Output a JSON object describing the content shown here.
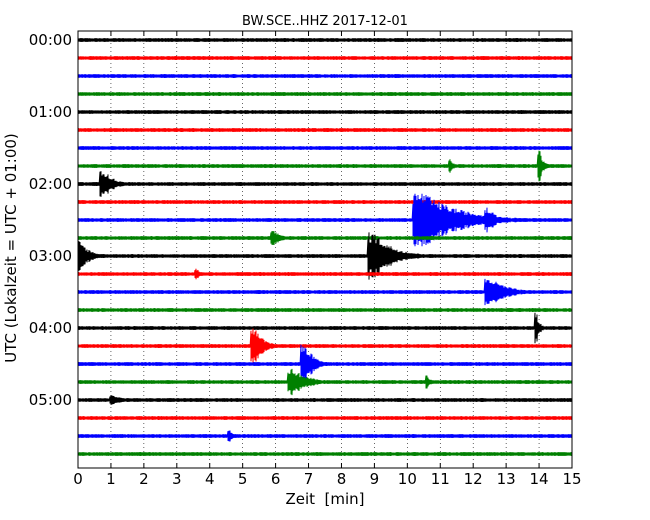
{
  "chart_data": {
    "type": "line",
    "title": "BW.SCE..HHZ 2017-12-01",
    "xlabel": "Zeit  [min]",
    "ylabel": "UTC (Lokalzeit = UTC + 01:00)",
    "xlim": [
      0,
      15
    ],
    "x_ticks": [
      "0",
      "1",
      "2",
      "3",
      "4",
      "5",
      "6",
      "7",
      "8",
      "9",
      "10",
      "11",
      "12",
      "13",
      "14",
      "15"
    ],
    "y_ticks": [
      "00:00",
      "01:00",
      "02:00",
      "03:00",
      "04:00",
      "05:00"
    ],
    "grid": true,
    "trace_colors": [
      "#000000",
      "#ff0000",
      "#0000ff",
      "#008000"
    ],
    "trace_start_times": [
      "00:00",
      "00:15",
      "00:30",
      "00:45",
      "01:00",
      "01:15",
      "01:30",
      "01:45",
      "02:00",
      "02:15",
      "02:30",
      "02:45",
      "03:00",
      "03:15",
      "03:30",
      "03:45",
      "04:00",
      "04:15",
      "04:30",
      "04:45",
      "05:00",
      "05:15",
      "05:30",
      "05:45"
    ],
    "events": [
      {
        "trace": 7,
        "minute": 11.3,
        "amp": 0.3,
        "dur": 0.25
      },
      {
        "trace": 7,
        "minute": 14.0,
        "amp": 0.55,
        "dur": 0.35
      },
      {
        "trace": 8,
        "minute": 0.7,
        "amp": 0.55,
        "dur": 0.9
      },
      {
        "trace": 10,
        "minute": 10.2,
        "amp": 1.0,
        "dur": 3.4
      },
      {
        "trace": 10,
        "minute": 12.4,
        "amp": 0.45,
        "dur": 0.8
      },
      {
        "trace": 11,
        "minute": 5.9,
        "amp": 0.25,
        "dur": 0.8
      },
      {
        "trace": 12,
        "minute": 0.0,
        "amp": 0.55,
        "dur": 0.9
      },
      {
        "trace": 12,
        "minute": 8.85,
        "amp": 0.85,
        "dur": 1.8
      },
      {
        "trace": 13,
        "minute": 3.6,
        "amp": 0.2,
        "dur": 0.3
      },
      {
        "trace": 14,
        "minute": 12.4,
        "amp": 0.5,
        "dur": 1.6
      },
      {
        "trace": 16,
        "minute": 13.9,
        "amp": 0.55,
        "dur": 0.3
      },
      {
        "trace": 17,
        "minute": 5.3,
        "amp": 0.65,
        "dur": 0.9
      },
      {
        "trace": 18,
        "minute": 6.8,
        "amp": 0.75,
        "dur": 0.9
      },
      {
        "trace": 19,
        "minute": 6.4,
        "amp": 0.5,
        "dur": 1.4
      },
      {
        "trace": 19,
        "minute": 10.6,
        "amp": 0.25,
        "dur": 0.3
      },
      {
        "trace": 20,
        "minute": 1.0,
        "amp": 0.2,
        "dur": 0.8
      },
      {
        "trace": 22,
        "minute": 4.6,
        "amp": 0.2,
        "dur": 0.3
      }
    ]
  }
}
